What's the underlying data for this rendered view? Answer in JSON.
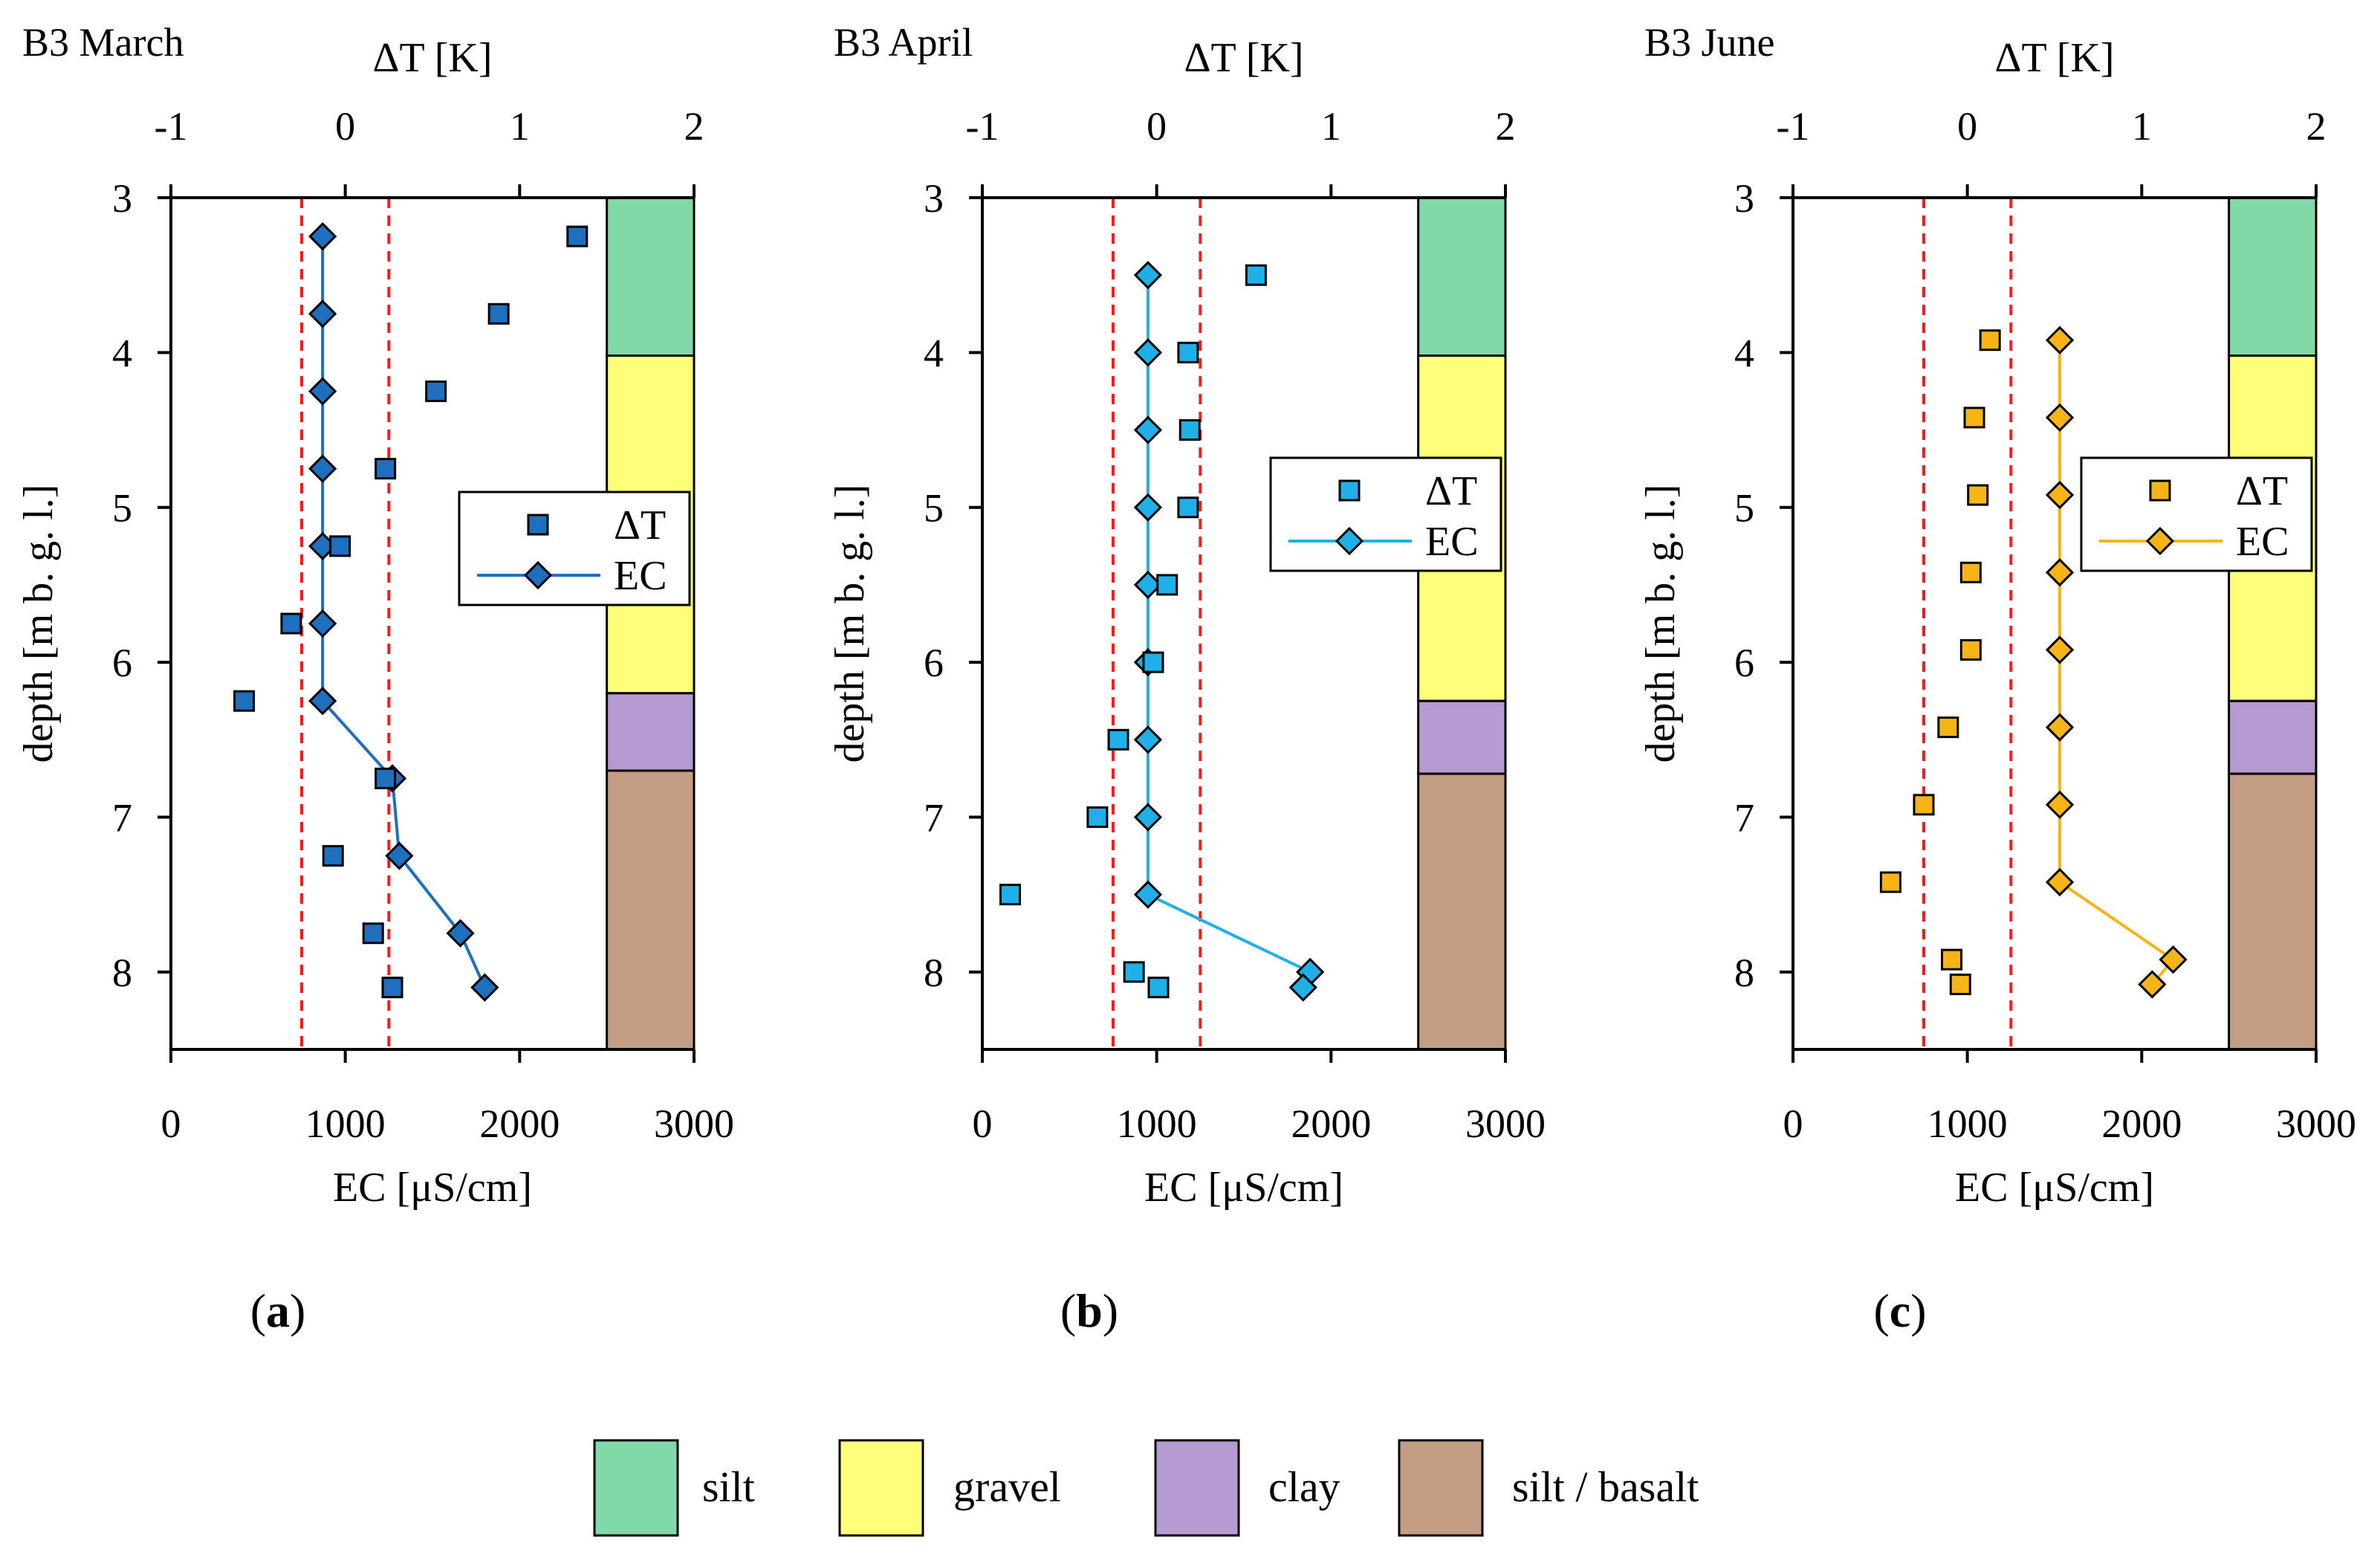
{
  "figure": {
    "panel_letters": [
      "a",
      "b",
      "c"
    ],
    "lithology_key": [
      {
        "label": "silt",
        "color": "#80d9a6"
      },
      {
        "label": "gravel",
        "color": "#ffff79"
      },
      {
        "label": "clay",
        "color": "#b49ad1"
      },
      {
        "label": "silt / basalt",
        "color": "#c49e84"
      }
    ]
  },
  "chart_data": [
    {
      "type": "scatter",
      "title": "B3 March",
      "panel": "a",
      "x_bottom_label": "EC [μS/cm]",
      "x_top_label": "ΔT [K]",
      "y_label": "depth [m b. g. l.]",
      "ec_range": [
        0,
        3000
      ],
      "ec_ticks": [
        "0",
        "1000",
        "2000",
        "3000"
      ],
      "dt_range": [
        -1,
        2
      ],
      "dt_ticks": [
        "-1",
        "0",
        "1",
        "2"
      ],
      "depth_range": [
        3,
        8.5
      ],
      "depth_ticks": [
        "3",
        "4",
        "5",
        "6",
        "7",
        "8"
      ],
      "reference_lines_dT": [
        -0.25,
        0.25
      ],
      "marker_color": "#1f6fbf",
      "legend": {
        "position": "center-right",
        "dT": "ΔT",
        "EC": "EC"
      },
      "dT": [
        {
          "depth": 3.25,
          "value": 1.33
        },
        {
          "depth": 3.75,
          "value": 0.88
        },
        {
          "depth": 4.25,
          "value": 0.52
        },
        {
          "depth": 4.75,
          "value": 0.23
        },
        {
          "depth": 5.25,
          "value": -0.03
        },
        {
          "depth": 5.75,
          "value": -0.31
        },
        {
          "depth": 6.25,
          "value": -0.58
        },
        {
          "depth": 6.75,
          "value": 0.23
        },
        {
          "depth": 7.25,
          "value": -0.07
        },
        {
          "depth": 7.75,
          "value": 0.16
        },
        {
          "depth": 8.1,
          "value": 0.27
        }
      ],
      "EC": [
        {
          "depth": 3.25,
          "value": 870
        },
        {
          "depth": 3.75,
          "value": 870
        },
        {
          "depth": 4.25,
          "value": 870
        },
        {
          "depth": 4.75,
          "value": 870
        },
        {
          "depth": 5.25,
          "value": 870
        },
        {
          "depth": 5.75,
          "value": 870
        },
        {
          "depth": 6.25,
          "value": 870
        },
        {
          "depth": 6.75,
          "value": 1270
        },
        {
          "depth": 7.25,
          "value": 1310
        },
        {
          "depth": 7.75,
          "value": 1660
        },
        {
          "depth": 8.1,
          "value": 1800
        }
      ],
      "lithology": [
        {
          "unit": "silt",
          "top": 3.0,
          "bottom": 4.02
        },
        {
          "unit": "gravel",
          "top": 4.02,
          "bottom": 6.2
        },
        {
          "unit": "clay",
          "top": 6.2,
          "bottom": 6.7
        },
        {
          "unit": "silt / basalt",
          "top": 6.7,
          "bottom": 8.5
        }
      ]
    },
    {
      "type": "scatter",
      "title": "B3 April",
      "panel": "b",
      "x_bottom_label": "EC [μS/cm]",
      "x_top_label": "ΔT [K]",
      "y_label": "depth [m b. g. l.]",
      "ec_range": [
        0,
        3000
      ],
      "ec_ticks": [
        "0",
        "1000",
        "2000",
        "3000"
      ],
      "dt_range": [
        -1,
        2
      ],
      "dt_ticks": [
        "-1",
        "0",
        "1",
        "2"
      ],
      "depth_range": [
        3,
        8.5
      ],
      "depth_ticks": [
        "3",
        "4",
        "5",
        "6",
        "7",
        "8"
      ],
      "reference_lines_dT": [
        -0.25,
        0.25
      ],
      "marker_color": "#20b0e8",
      "legend": {
        "position": "top-right",
        "dT": "ΔT",
        "EC": "EC"
      },
      "dT": [
        {
          "depth": 3.5,
          "value": 0.57
        },
        {
          "depth": 4.0,
          "value": 0.18
        },
        {
          "depth": 4.5,
          "value": 0.19
        },
        {
          "depth": 5.0,
          "value": 0.18
        },
        {
          "depth": 5.5,
          "value": 0.06
        },
        {
          "depth": 6.0,
          "value": -0.02
        },
        {
          "depth": 6.5,
          "value": -0.22
        },
        {
          "depth": 7.0,
          "value": -0.34
        },
        {
          "depth": 7.5,
          "value": -0.84
        },
        {
          "depth": 8.0,
          "value": -0.13
        },
        {
          "depth": 8.1,
          "value": 0.01
        }
      ],
      "EC": [
        {
          "depth": 3.5,
          "value": 950
        },
        {
          "depth": 4.0,
          "value": 950
        },
        {
          "depth": 4.5,
          "value": 950
        },
        {
          "depth": 5.0,
          "value": 950
        },
        {
          "depth": 5.5,
          "value": 950
        },
        {
          "depth": 6.0,
          "value": 950
        },
        {
          "depth": 6.5,
          "value": 950
        },
        {
          "depth": 7.0,
          "value": 950
        },
        {
          "depth": 7.5,
          "value": 950
        },
        {
          "depth": 8.0,
          "value": 1880
        },
        {
          "depth": 8.1,
          "value": 1840
        }
      ],
      "lithology": [
        {
          "unit": "silt",
          "top": 3.0,
          "bottom": 4.02
        },
        {
          "unit": "gravel",
          "top": 4.02,
          "bottom": 6.25
        },
        {
          "unit": "clay",
          "top": 6.25,
          "bottom": 6.72
        },
        {
          "unit": "silt / basalt",
          "top": 6.72,
          "bottom": 8.5
        }
      ]
    },
    {
      "type": "scatter",
      "title": "B3 June",
      "panel": "c",
      "x_bottom_label": "EC [μS/cm]",
      "x_top_label": "ΔT [K]",
      "y_label": "depth [m b. g. l.]",
      "ec_range": [
        0,
        3000
      ],
      "ec_ticks": [
        "0",
        "1000",
        "2000",
        "3000"
      ],
      "dt_range": [
        -1,
        2
      ],
      "dt_ticks": [
        "-1",
        "0",
        "1",
        "2"
      ],
      "depth_range": [
        3,
        8.5
      ],
      "depth_ticks": [
        "3",
        "4",
        "5",
        "6",
        "7",
        "8"
      ],
      "reference_lines_dT": [
        -0.25,
        0.25
      ],
      "marker_color": "#f7b416",
      "legend": {
        "position": "top-right",
        "dT": "ΔT",
        "EC": "EC"
      },
      "dT": [
        {
          "depth": 3.92,
          "value": 0.13
        },
        {
          "depth": 4.42,
          "value": 0.04
        },
        {
          "depth": 4.92,
          "value": 0.06
        },
        {
          "depth": 5.42,
          "value": 0.02
        },
        {
          "depth": 5.92,
          "value": 0.02
        },
        {
          "depth": 6.42,
          "value": -0.11
        },
        {
          "depth": 6.92,
          "value": -0.25
        },
        {
          "depth": 7.42,
          "value": -0.44
        },
        {
          "depth": 7.92,
          "value": -0.09
        },
        {
          "depth": 8.08,
          "value": -0.04
        }
      ],
      "EC": [
        {
          "depth": 3.92,
          "value": 1530
        },
        {
          "depth": 4.42,
          "value": 1530
        },
        {
          "depth": 4.92,
          "value": 1530
        },
        {
          "depth": 5.42,
          "value": 1530
        },
        {
          "depth": 5.92,
          "value": 1530
        },
        {
          "depth": 6.42,
          "value": 1530
        },
        {
          "depth": 6.92,
          "value": 1530
        },
        {
          "depth": 7.42,
          "value": 1530
        },
        {
          "depth": 7.92,
          "value": 2180
        },
        {
          "depth": 8.08,
          "value": 2060
        }
      ],
      "lithology": [
        {
          "unit": "silt",
          "top": 3.0,
          "bottom": 4.02
        },
        {
          "unit": "gravel",
          "top": 4.02,
          "bottom": 6.25
        },
        {
          "unit": "clay",
          "top": 6.25,
          "bottom": 6.72
        },
        {
          "unit": "silt / basalt",
          "top": 6.72,
          "bottom": 8.5
        }
      ]
    }
  ]
}
